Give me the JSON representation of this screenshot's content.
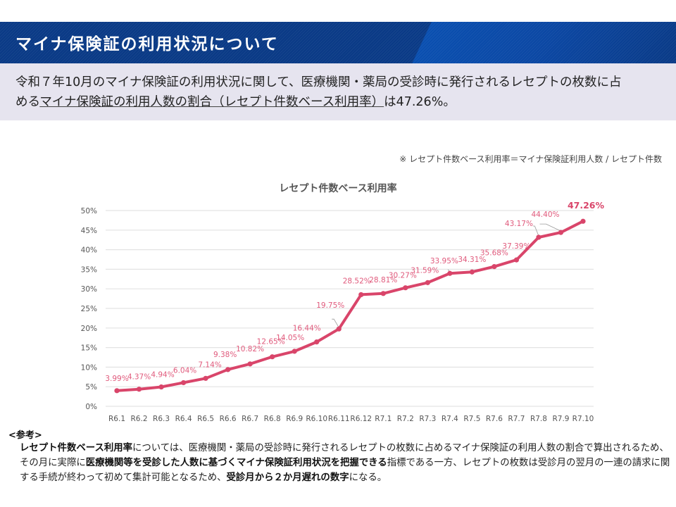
{
  "header": {
    "title": "マイナ保険証の利用状況について"
  },
  "summary": {
    "line1": "令和７年10月のマイナ保険証の利用状況に関して、医療機関・薬局の受診時に発行されるレセプトの枚数に占",
    "line2_prefix": "める",
    "line2_underlined": "マイナ保険証の利用人数の割合（レセプト件数ベース利用率）",
    "line2_suffix": "は47.26%。"
  },
  "formula_note": "※ レセプト件数ベース利用率＝マイナ保険証利用人数 / レセプト件数",
  "colors": {
    "series": "#d9456a",
    "label": "#e05a7c",
    "grid": "#e3e3e3",
    "axis_text": "#555555",
    "header_bg": "#0a3a86",
    "summary_bg": "#e6e4ef"
  },
  "chart_data": {
    "type": "line",
    "title": "レセプト件数ベース利用率",
    "xlabel": "",
    "ylabel": "",
    "ylim": [
      0,
      50
    ],
    "yticks": [
      0,
      5,
      10,
      15,
      20,
      25,
      30,
      35,
      40,
      45,
      50
    ],
    "ytick_labels": [
      "0%",
      "5%",
      "10%",
      "15%",
      "20%",
      "25%",
      "30%",
      "35%",
      "40%",
      "45%",
      "50%"
    ],
    "grid": true,
    "legend": "none",
    "categories": [
      "R6.1",
      "R6.2",
      "R6.3",
      "R6.4",
      "R6.5",
      "R6.6",
      "R6.7",
      "R6.8",
      "R6.9",
      "R6.10",
      "R6.11",
      "R6.12",
      "R7.1",
      "R7.2",
      "R7.3",
      "R7.4",
      "R7.5",
      "R7.6",
      "R7.7",
      "R7.8",
      "R7.9",
      "R7.10"
    ],
    "series": [
      {
        "name": "レセプト件数ベース利用率",
        "values": [
          3.99,
          4.37,
          4.94,
          6.04,
          7.14,
          9.38,
          10.82,
          12.65,
          14.05,
          16.44,
          19.75,
          28.52,
          28.81,
          30.27,
          31.59,
          33.95,
          34.31,
          35.68,
          37.39,
          43.17,
          44.4,
          47.26
        ],
        "data_labels": [
          "3.99%",
          "4.37%",
          "4.94%",
          "6.04%",
          "7.14%",
          "9.38%",
          "10.82%",
          "12.65%",
          "14.05%",
          "16.44%",
          "19.75%",
          "28.52%",
          "28.81%",
          "30.27%",
          "31.59%",
          "33.95%",
          "34.31%",
          "35.68%",
          "37.39%",
          "43.17%",
          "44.40%",
          "47.26%"
        ],
        "highlighted_label": "47.26%"
      }
    ]
  },
  "reference": {
    "heading": "<参考>",
    "p1_bold": "レセプト件数ベース利用率",
    "p1_text": "については、医療機関・薬局の受診時に発行されるレセプトの枚数に占めるマイナ保険証の利用人数の割合で算出されるため、",
    "p2_text1": "その月に実際に",
    "p2_bold": "医療機関等を受診した人数に基づくマイナ保険証利用状況を把握できる",
    "p2_text2": "指標である一方、レセプトの枚数は受診月の翌月の一連の請求に関",
    "p3_text1": "する手続が終わって初めて集計可能となるため、",
    "p3_bold": "受診月から２か月遅れの数字",
    "p3_text2": "になる。"
  }
}
